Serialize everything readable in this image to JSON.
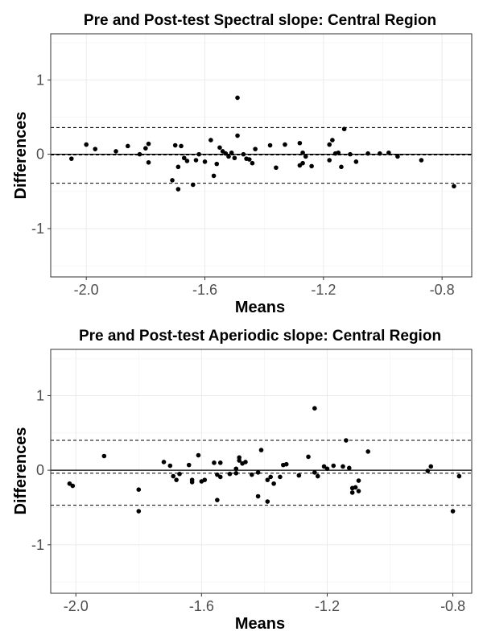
{
  "chart_data": [
    {
      "type": "scatter",
      "title": "Pre and Post-test Spectral slope: Central Region",
      "xlabel": "Means",
      "ylabel": "Differences",
      "xlim": [
        -2.12,
        -0.7
      ],
      "ylim": [
        -1.65,
        1.62
      ],
      "xticks": [
        -2.0,
        -1.6,
        -1.2,
        -0.8
      ],
      "xtick_labels": [
        "-2.0",
        "-1.6",
        "-1.2",
        "-0.8"
      ],
      "yticks": [
        -1,
        0,
        1
      ],
      "ytick_labels": [
        "-1",
        "0",
        "1"
      ],
      "grid": true,
      "zero_line": 0,
      "mean_difference": -0.01,
      "upper_limit": 0.36,
      "lower_limit": -0.39,
      "points": [
        {
          "x": -2.05,
          "y": -0.06
        },
        {
          "x": -2.0,
          "y": 0.13
        },
        {
          "x": -1.97,
          "y": 0.07
        },
        {
          "x": -1.9,
          "y": 0.04
        },
        {
          "x": -1.86,
          "y": 0.11
        },
        {
          "x": -1.82,
          "y": 0.0
        },
        {
          "x": -1.8,
          "y": 0.08
        },
        {
          "x": -1.79,
          "y": 0.14
        },
        {
          "x": -1.79,
          "y": -0.11
        },
        {
          "x": -1.71,
          "y": -0.35
        },
        {
          "x": -1.7,
          "y": 0.12
        },
        {
          "x": -1.69,
          "y": -0.47
        },
        {
          "x": -1.69,
          "y": -0.17
        },
        {
          "x": -1.68,
          "y": 0.11
        },
        {
          "x": -1.67,
          "y": -0.05
        },
        {
          "x": -1.66,
          "y": -0.09
        },
        {
          "x": -1.64,
          "y": -0.41
        },
        {
          "x": -1.63,
          "y": -0.08
        },
        {
          "x": -1.62,
          "y": 0.0
        },
        {
          "x": -1.6,
          "y": -0.1
        },
        {
          "x": -1.58,
          "y": 0.19
        },
        {
          "x": -1.57,
          "y": -0.29
        },
        {
          "x": -1.56,
          "y": -0.13
        },
        {
          "x": -1.55,
          "y": 0.09
        },
        {
          "x": -1.54,
          "y": 0.04
        },
        {
          "x": -1.53,
          "y": 0.01
        },
        {
          "x": -1.52,
          "y": -0.03
        },
        {
          "x": -1.51,
          "y": 0.02
        },
        {
          "x": -1.5,
          "y": -0.05
        },
        {
          "x": -1.49,
          "y": 0.25
        },
        {
          "x": -1.49,
          "y": 0.76
        },
        {
          "x": -1.47,
          "y": 0.0
        },
        {
          "x": -1.46,
          "y": -0.06
        },
        {
          "x": -1.45,
          "y": -0.07
        },
        {
          "x": -1.44,
          "y": -0.12
        },
        {
          "x": -1.43,
          "y": 0.07
        },
        {
          "x": -1.38,
          "y": 0.12
        },
        {
          "x": -1.36,
          "y": -0.18
        },
        {
          "x": -1.33,
          "y": 0.13
        },
        {
          "x": -1.28,
          "y": 0.15
        },
        {
          "x": -1.28,
          "y": -0.15
        },
        {
          "x": -1.27,
          "y": 0.02
        },
        {
          "x": -1.27,
          "y": -0.12
        },
        {
          "x": -1.26,
          "y": -0.03
        },
        {
          "x": -1.24,
          "y": -0.16
        },
        {
          "x": -1.18,
          "y": 0.13
        },
        {
          "x": -1.17,
          "y": 0.19
        },
        {
          "x": -1.16,
          "y": 0.01
        },
        {
          "x": -1.18,
          "y": -0.08
        },
        {
          "x": -1.15,
          "y": 0.02
        },
        {
          "x": -1.14,
          "y": -0.17
        },
        {
          "x": -1.13,
          "y": 0.34
        },
        {
          "x": -1.11,
          "y": 0.0
        },
        {
          "x": -1.09,
          "y": -0.1
        },
        {
          "x": -1.05,
          "y": 0.01
        },
        {
          "x": -1.01,
          "y": 0.01
        },
        {
          "x": -0.98,
          "y": 0.02
        },
        {
          "x": -0.95,
          "y": -0.03
        },
        {
          "x": -0.87,
          "y": -0.08
        },
        {
          "x": -0.76,
          "y": -0.43
        }
      ]
    },
    {
      "type": "scatter",
      "title": "Pre and Post-test Aperiodic slope: Central Region",
      "xlabel": "Means",
      "ylabel": "Differences",
      "xlim": [
        -2.08,
        -0.74
      ],
      "ylim": [
        -1.65,
        1.62
      ],
      "xticks": [
        -2.0,
        -1.6,
        -1.2,
        -0.8
      ],
      "xtick_labels": [
        "-2.0",
        "-1.6",
        "-1.2",
        "-0.8"
      ],
      "yticks": [
        -1,
        0,
        1
      ],
      "ytick_labels": [
        "-1",
        "0",
        "1"
      ],
      "grid": true,
      "zero_line": 0,
      "mean_difference": -0.04,
      "upper_limit": 0.4,
      "lower_limit": -0.47,
      "points": [
        {
          "x": -2.02,
          "y": -0.18
        },
        {
          "x": -2.01,
          "y": -0.21
        },
        {
          "x": -1.91,
          "y": 0.19
        },
        {
          "x": -1.8,
          "y": -0.26
        },
        {
          "x": -1.8,
          "y": -0.55
        },
        {
          "x": -1.72,
          "y": 0.11
        },
        {
          "x": -1.7,
          "y": 0.06
        },
        {
          "x": -1.69,
          "y": -0.08
        },
        {
          "x": -1.68,
          "y": -0.13
        },
        {
          "x": -1.67,
          "y": -0.05
        },
        {
          "x": -1.64,
          "y": 0.07
        },
        {
          "x": -1.63,
          "y": -0.13
        },
        {
          "x": -1.63,
          "y": -0.16
        },
        {
          "x": -1.61,
          "y": 0.2
        },
        {
          "x": -1.6,
          "y": -0.15
        },
        {
          "x": -1.59,
          "y": -0.13
        },
        {
          "x": -1.56,
          "y": 0.1
        },
        {
          "x": -1.55,
          "y": -0.4
        },
        {
          "x": -1.55,
          "y": -0.06
        },
        {
          "x": -1.54,
          "y": -0.09
        },
        {
          "x": -1.54,
          "y": 0.1
        },
        {
          "x": -1.51,
          "y": -0.05
        },
        {
          "x": -1.49,
          "y": 0.02
        },
        {
          "x": -1.49,
          "y": -0.04
        },
        {
          "x": -1.48,
          "y": 0.17
        },
        {
          "x": -1.48,
          "y": 0.13
        },
        {
          "x": -1.47,
          "y": 0.09
        },
        {
          "x": -1.46,
          "y": 0.11
        },
        {
          "x": -1.44,
          "y": -0.06
        },
        {
          "x": -1.42,
          "y": -0.35
        },
        {
          "x": -1.41,
          "y": 0.27
        },
        {
          "x": -1.42,
          "y": -0.03
        },
        {
          "x": -1.39,
          "y": -0.42
        },
        {
          "x": -1.39,
          "y": -0.13
        },
        {
          "x": -1.38,
          "y": -0.09
        },
        {
          "x": -1.37,
          "y": -0.18
        },
        {
          "x": -1.35,
          "y": -0.09
        },
        {
          "x": -1.34,
          "y": 0.07
        },
        {
          "x": -1.33,
          "y": 0.08
        },
        {
          "x": -1.29,
          "y": -0.07
        },
        {
          "x": -1.26,
          "y": 0.18
        },
        {
          "x": -1.24,
          "y": 0.83
        },
        {
          "x": -1.24,
          "y": -0.03
        },
        {
          "x": -1.23,
          "y": -0.08
        },
        {
          "x": -1.21,
          "y": 0.05
        },
        {
          "x": -1.2,
          "y": 0.02
        },
        {
          "x": -1.18,
          "y": 0.06
        },
        {
          "x": -1.15,
          "y": 0.05
        },
        {
          "x": -1.14,
          "y": 0.4
        },
        {
          "x": -1.13,
          "y": 0.03
        },
        {
          "x": -1.12,
          "y": -0.24
        },
        {
          "x": -1.12,
          "y": -0.3
        },
        {
          "x": -1.11,
          "y": -0.23
        },
        {
          "x": -1.1,
          "y": -0.14
        },
        {
          "x": -1.1,
          "y": -0.28
        },
        {
          "x": -1.07,
          "y": 0.25
        },
        {
          "x": -0.88,
          "y": -0.01
        },
        {
          "x": -0.87,
          "y": 0.05
        },
        {
          "x": -0.8,
          "y": -0.55
        },
        {
          "x": -0.78,
          "y": -0.08
        }
      ]
    }
  ]
}
